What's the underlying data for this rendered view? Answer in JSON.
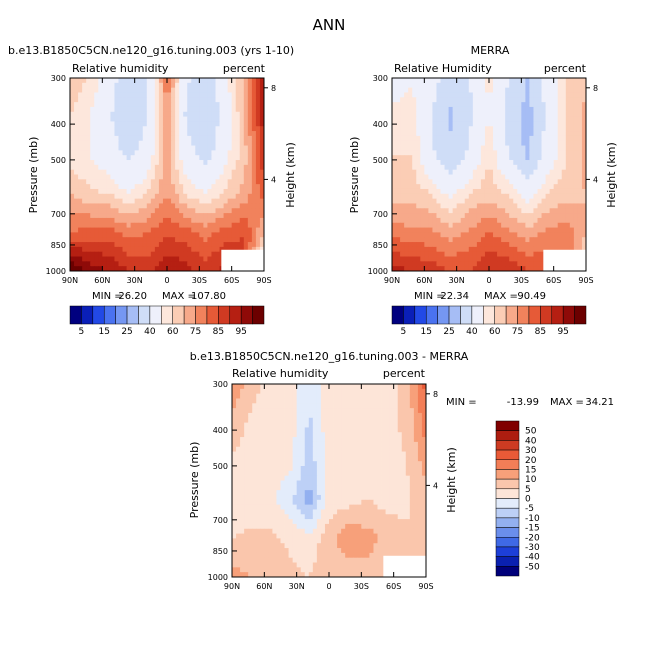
{
  "figure_title": "ANN",
  "chart_data": [
    {
      "type": "heatmap",
      "title": "b.e13.B1850C5CN.ne120_g16.tuning.003 (yrs 1-10)",
      "subtitle_left": "Relative humidity",
      "subtitle_right": "percent",
      "xlabel": "",
      "ylabel": "Pressure (mb)",
      "ylabel_right": "Height (km)",
      "x_ticks": [
        "90N",
        "60N",
        "30N",
        "0",
        "30S",
        "60S",
        "90S"
      ],
      "y_ticks": [
        "300",
        "400",
        "500",
        "700",
        "850",
        "1000"
      ],
      "y_right_ticks": [
        "8",
        "4"
      ],
      "min_label": "MIN =",
      "min_value": "26.20",
      "max_label": "MAX =",
      "max_value": "107.80",
      "field": [
        [
          58,
          55,
          45,
          33,
          40,
          70,
          42,
          32,
          48,
          62,
          85
        ],
        [
          55,
          50,
          42,
          30,
          40,
          65,
          38,
          30,
          45,
          60,
          83
        ],
        [
          52,
          50,
          45,
          38,
          45,
          62,
          44,
          36,
          48,
          58,
          80
        ],
        [
          60,
          56,
          55,
          50,
          55,
          65,
          54,
          50,
          56,
          62,
          72
        ],
        [
          70,
          72,
          72,
          68,
          70,
          74,
          72,
          68,
          72,
          75,
          60
        ],
        [
          96,
          88,
          85,
          80,
          78,
          85,
          82,
          78,
          82,
          78,
          40
        ]
      ]
    },
    {
      "type": "heatmap",
      "title": "MERRA",
      "subtitle_left": "Relative Humidity",
      "subtitle_right": "percent",
      "xlabel": "",
      "ylabel": "Pressure (mb)",
      "ylabel_right": "Height (km)",
      "x_ticks": [
        "90N",
        "60N",
        "30N",
        "0",
        "30S",
        "60S",
        "90S"
      ],
      "y_ticks": [
        "300",
        "400",
        "500",
        "700",
        "850",
        "1000"
      ],
      "y_right_ticks": [
        "8",
        "4"
      ],
      "min_label": "MIN =",
      "min_value": "22.34",
      "max_label": "MAX =",
      "max_value": "90.49",
      "field": [
        [
          45,
          48,
          45,
          35,
          40,
          52,
          40,
          30,
          45,
          55,
          58
        ],
        [
          52,
          55,
          40,
          28,
          38,
          50,
          36,
          26,
          42,
          55,
          62
        ],
        [
          55,
          55,
          42,
          33,
          42,
          55,
          40,
          28,
          45,
          55,
          62
        ],
        [
          58,
          58,
          55,
          48,
          55,
          58,
          54,
          46,
          55,
          58,
          60
        ],
        [
          68,
          66,
          66,
          62,
          66,
          70,
          66,
          62,
          66,
          68,
          60
        ],
        [
          82,
          80,
          78,
          75,
          75,
          80,
          80,
          75,
          75,
          70,
          52
        ]
      ]
    },
    {
      "type": "heatmap",
      "title": "b.e13.B1850C5CN.ne120_g16.tuning.003 - MERRA",
      "subtitle_left": "Relative humidity",
      "subtitle_right": "percent",
      "xlabel": "",
      "ylabel": "Pressure (mb)",
      "ylabel_right": "Height (km)",
      "x_ticks": [
        "90N",
        "60N",
        "30N",
        "0",
        "30S",
        "60S",
        "90S"
      ],
      "y_ticks": [
        "300",
        "400",
        "500",
        "700",
        "850",
        "1000"
      ],
      "y_right_ticks": [
        "8",
        "4"
      ],
      "min_label": "MIN =",
      "min_value": "-13.99",
      "max_label": "MAX =",
      "max_value": "34.21",
      "field": [
        [
          15,
          7,
          3,
          2,
          -3,
          3,
          2,
          2,
          3,
          7,
          22
        ],
        [
          8,
          4,
          3,
          2,
          -6,
          3,
          2,
          3,
          4,
          6,
          18
        ],
        [
          4,
          3,
          3,
          2,
          -8,
          3,
          3,
          3,
          3,
          5,
          12
        ],
        [
          3,
          2,
          1,
          -4,
          -12,
          2,
          3,
          5,
          3,
          4,
          8
        ],
        [
          5,
          6,
          6,
          4,
          2,
          8,
          14,
          12,
          8,
          6,
          5
        ],
        [
          12,
          10,
          8,
          6,
          5,
          8,
          6,
          8,
          8,
          6,
          5
        ]
      ]
    }
  ],
  "colorbar_abs": {
    "levels": [
      "5",
      "15",
      "25",
      "40",
      "60",
      "75",
      "85",
      "95"
    ],
    "colors": [
      "#00007f",
      "#0a1fb8",
      "#2249e6",
      "#4a72f0",
      "#7597f2",
      "#a6bdf5",
      "#cfddf7",
      "#eef0fb",
      "#fde7dc",
      "#fbcdb5",
      "#f7a98a",
      "#f1825c",
      "#e65a37",
      "#d03a22",
      "#b51f12",
      "#8f0a08",
      "#6c0000"
    ]
  },
  "colorbar_diff": {
    "levels": [
      "50",
      "40",
      "30",
      "20",
      "15",
      "10",
      "5",
      "0",
      "-5",
      "-10",
      "-15",
      "-20",
      "-30",
      "-40",
      "-50"
    ],
    "colors": [
      "#800000",
      "#ad1d10",
      "#cd3b22",
      "#e95a37",
      "#f37e57",
      "#f7a07a",
      "#fac6ac",
      "#fde5d8",
      "#e3ecfb",
      "#bdd0f6",
      "#93b0f0",
      "#6a8eec",
      "#3f69e6",
      "#1d3fd8",
      "#0a20b0",
      "#00007a"
    ]
  }
}
